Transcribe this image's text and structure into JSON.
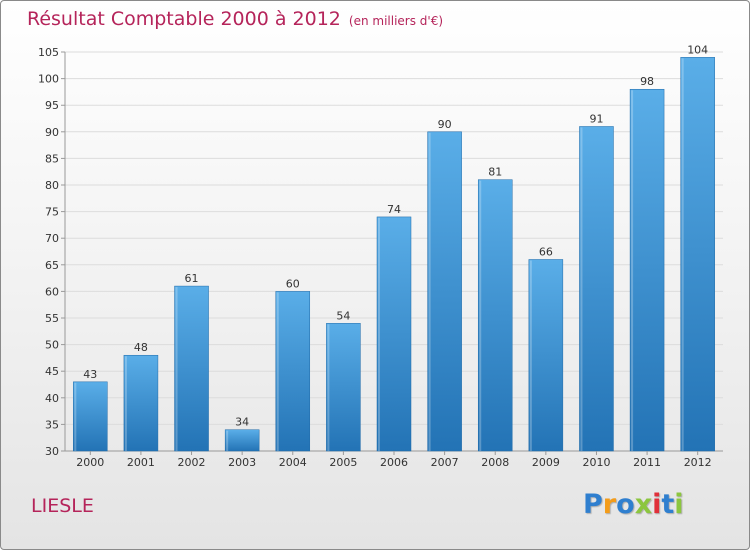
{
  "header": {
    "title": "Résultat Comptable 2000 à 2012",
    "subtitle": "(en milliers d'€)"
  },
  "commune": "LIESLE",
  "logo": {
    "letters": [
      "P",
      "r",
      "o",
      "x",
      "i",
      "t",
      "i"
    ],
    "colors": [
      "#2f7fcf",
      "#f39c1a",
      "#2f7fcf",
      "#8cc63f",
      "#e0303a",
      "#2f7fcf",
      "#8cc63f"
    ]
  },
  "colors": {
    "bar_light": "#5aaee8",
    "bar_dark": "#2373b5",
    "grid": "#dcdcdc",
    "axis": "#999999"
  },
  "chart_data": {
    "type": "bar",
    "title": "Résultat Comptable 2000 à 2012",
    "subtitle": "(en milliers d'€)",
    "xlabel": "",
    "ylabel": "",
    "categories": [
      "2000",
      "2001",
      "2002",
      "2003",
      "2004",
      "2005",
      "2006",
      "2007",
      "2008",
      "2009",
      "2010",
      "2011",
      "2012"
    ],
    "values": [
      43,
      48,
      61,
      34,
      60,
      54,
      74,
      90,
      81,
      66,
      91,
      98,
      104
    ],
    "ylim": [
      30,
      105
    ],
    "yticks": [
      30,
      35,
      40,
      45,
      50,
      55,
      60,
      65,
      70,
      75,
      80,
      85,
      90,
      95,
      100,
      105
    ],
    "grid": true,
    "data_labels": true
  }
}
